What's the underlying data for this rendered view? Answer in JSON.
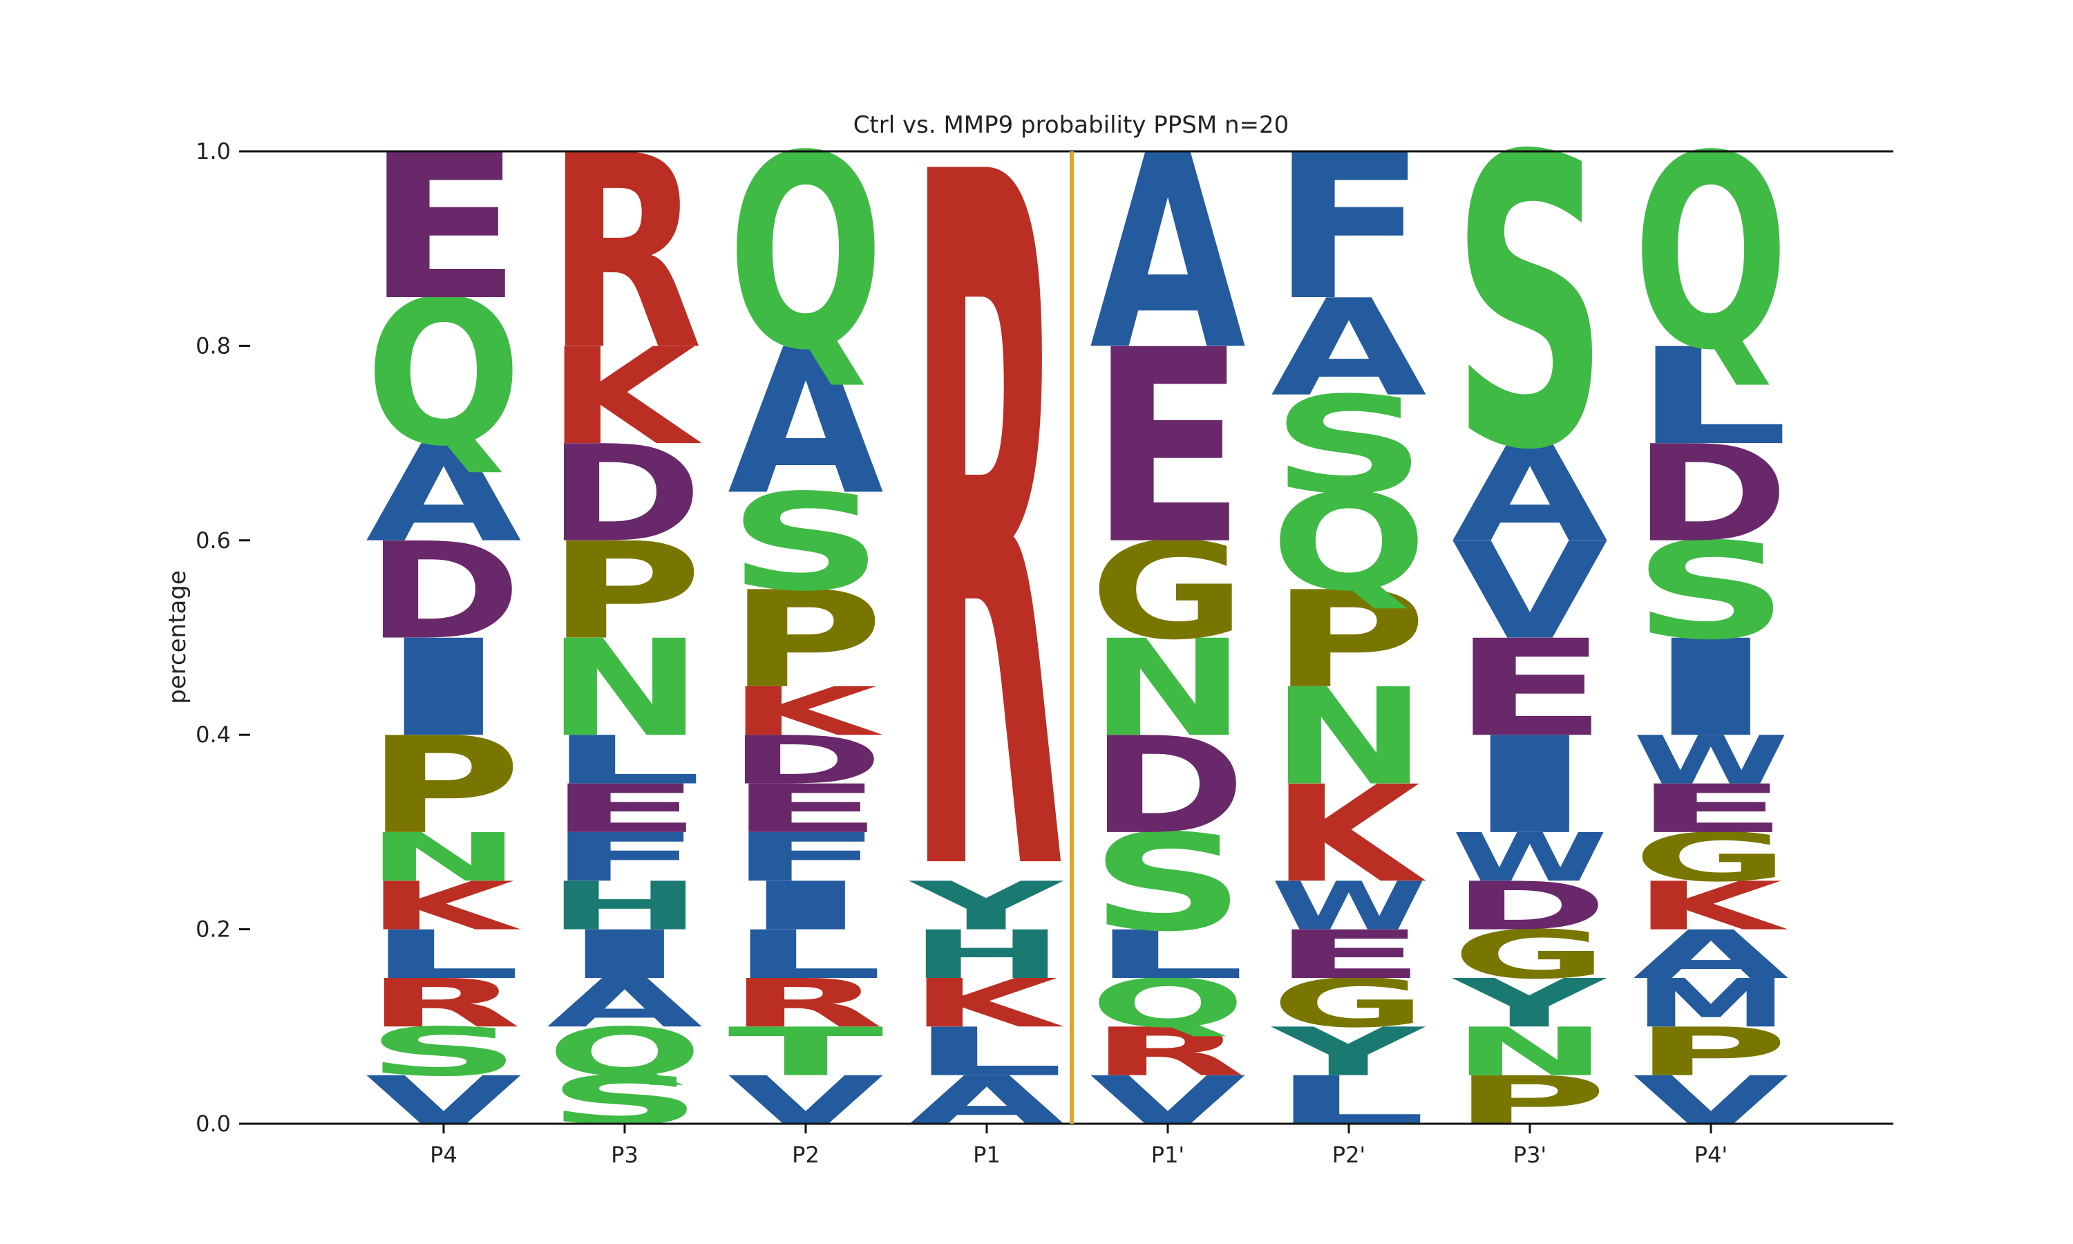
{
  "colors": {
    "purple": "#68286a",
    "green": "#3fba45",
    "blue": "#245b9e",
    "red": "#bb2e23",
    "olive": "#797600",
    "teal": "#1a7a72",
    "divider": "#dba42c",
    "axis": "#111111"
  },
  "chart_data": {
    "type": "sequence_logo",
    "title": "Ctrl vs. MMP9 probability PPSM n=20",
    "ylabel": "percentage",
    "xlabel": "",
    "ylim": [
      0,
      1.0
    ],
    "yticks": [
      "0.0",
      "0.2",
      "0.4",
      "0.6",
      "0.8",
      "1.0"
    ],
    "divider_after_position": "P1",
    "positions": [
      {
        "label": "P4",
        "letters": [
          {
            "aa": "V",
            "y0": 0.0,
            "y1": 0.05,
            "color": "blue"
          },
          {
            "aa": "S",
            "y0": 0.05,
            "y1": 0.1,
            "color": "green"
          },
          {
            "aa": "R",
            "y0": 0.1,
            "y1": 0.15,
            "color": "red"
          },
          {
            "aa": "L",
            "y0": 0.15,
            "y1": 0.2,
            "color": "blue"
          },
          {
            "aa": "K",
            "y0": 0.2,
            "y1": 0.25,
            "color": "red"
          },
          {
            "aa": "N",
            "y0": 0.25,
            "y1": 0.3,
            "color": "green"
          },
          {
            "aa": "P",
            "y0": 0.3,
            "y1": 0.4,
            "color": "olive"
          },
          {
            "aa": "I",
            "y0": 0.4,
            "y1": 0.5,
            "color": "blue"
          },
          {
            "aa": "D",
            "y0": 0.5,
            "y1": 0.6,
            "color": "purple"
          },
          {
            "aa": "A",
            "y0": 0.6,
            "y1": 0.7,
            "color": "blue"
          },
          {
            "aa": "Q",
            "y0": 0.7,
            "y1": 0.85,
            "color": "green"
          },
          {
            "aa": "E",
            "y0": 0.85,
            "y1": 1.0,
            "color": "purple"
          }
        ]
      },
      {
        "label": "P3",
        "letters": [
          {
            "aa": "S",
            "y0": 0.0,
            "y1": 0.05,
            "color": "green"
          },
          {
            "aa": "Q",
            "y0": 0.05,
            "y1": 0.1,
            "color": "green"
          },
          {
            "aa": "A",
            "y0": 0.1,
            "y1": 0.15,
            "color": "blue"
          },
          {
            "aa": "I",
            "y0": 0.15,
            "y1": 0.2,
            "color": "blue"
          },
          {
            "aa": "H",
            "y0": 0.2,
            "y1": 0.25,
            "color": "teal"
          },
          {
            "aa": "F",
            "y0": 0.25,
            "y1": 0.3,
            "color": "blue"
          },
          {
            "aa": "E",
            "y0": 0.3,
            "y1": 0.35,
            "color": "purple"
          },
          {
            "aa": "L",
            "y0": 0.35,
            "y1": 0.4,
            "color": "blue"
          },
          {
            "aa": "N",
            "y0": 0.4,
            "y1": 0.5,
            "color": "green"
          },
          {
            "aa": "P",
            "y0": 0.5,
            "y1": 0.6,
            "color": "olive"
          },
          {
            "aa": "D",
            "y0": 0.6,
            "y1": 0.7,
            "color": "purple"
          },
          {
            "aa": "K",
            "y0": 0.7,
            "y1": 0.8,
            "color": "red"
          },
          {
            "aa": "R",
            "y0": 0.8,
            "y1": 1.0,
            "color": "red"
          }
        ]
      },
      {
        "label": "P2",
        "letters": [
          {
            "aa": "V",
            "y0": 0.0,
            "y1": 0.05,
            "color": "blue"
          },
          {
            "aa": "T",
            "y0": 0.05,
            "y1": 0.1,
            "color": "green"
          },
          {
            "aa": "R",
            "y0": 0.1,
            "y1": 0.15,
            "color": "red"
          },
          {
            "aa": "L",
            "y0": 0.15,
            "y1": 0.2,
            "color": "blue"
          },
          {
            "aa": "I",
            "y0": 0.2,
            "y1": 0.25,
            "color": "blue"
          },
          {
            "aa": "F",
            "y0": 0.25,
            "y1": 0.3,
            "color": "blue"
          },
          {
            "aa": "E",
            "y0": 0.3,
            "y1": 0.35,
            "color": "purple"
          },
          {
            "aa": "D",
            "y0": 0.35,
            "y1": 0.4,
            "color": "purple"
          },
          {
            "aa": "K",
            "y0": 0.4,
            "y1": 0.45,
            "color": "red"
          },
          {
            "aa": "P",
            "y0": 0.45,
            "y1": 0.55,
            "color": "olive"
          },
          {
            "aa": "S",
            "y0": 0.55,
            "y1": 0.65,
            "color": "green"
          },
          {
            "aa": "A",
            "y0": 0.65,
            "y1": 0.8,
            "color": "blue"
          },
          {
            "aa": "Q",
            "y0": 0.8,
            "y1": 1.0,
            "color": "green"
          }
        ]
      },
      {
        "label": "P1",
        "letters": [
          {
            "aa": "A",
            "y0": 0.0,
            "y1": 0.05,
            "color": "blue"
          },
          {
            "aa": "L",
            "y0": 0.05,
            "y1": 0.1,
            "color": "blue"
          },
          {
            "aa": "K",
            "y0": 0.1,
            "y1": 0.15,
            "color": "red"
          },
          {
            "aa": "H",
            "y0": 0.15,
            "y1": 0.2,
            "color": "teal"
          },
          {
            "aa": "Y",
            "y0": 0.2,
            "y1": 0.25,
            "color": "teal"
          },
          {
            "aa": "R",
            "y0": 0.27,
            "y1": 0.985,
            "color": "red"
          }
        ]
      },
      {
        "label": "P1'",
        "letters": [
          {
            "aa": "V",
            "y0": 0.0,
            "y1": 0.05,
            "color": "blue"
          },
          {
            "aa": "R",
            "y0": 0.05,
            "y1": 0.1,
            "color": "red"
          },
          {
            "aa": "Q",
            "y0": 0.1,
            "y1": 0.15,
            "color": "green"
          },
          {
            "aa": "L",
            "y0": 0.15,
            "y1": 0.2,
            "color": "blue"
          },
          {
            "aa": "S",
            "y0": 0.2,
            "y1": 0.3,
            "color": "green"
          },
          {
            "aa": "D",
            "y0": 0.3,
            "y1": 0.4,
            "color": "purple"
          },
          {
            "aa": "N",
            "y0": 0.4,
            "y1": 0.5,
            "color": "green"
          },
          {
            "aa": "G",
            "y0": 0.5,
            "y1": 0.6,
            "color": "olive"
          },
          {
            "aa": "E",
            "y0": 0.6,
            "y1": 0.8,
            "color": "purple"
          },
          {
            "aa": "A",
            "y0": 0.8,
            "y1": 1.0,
            "color": "blue"
          }
        ]
      },
      {
        "label": "P2'",
        "letters": [
          {
            "aa": "L",
            "y0": 0.0,
            "y1": 0.05,
            "color": "blue"
          },
          {
            "aa": "Y",
            "y0": 0.05,
            "y1": 0.1,
            "color": "teal"
          },
          {
            "aa": "G",
            "y0": 0.1,
            "y1": 0.15,
            "color": "olive"
          },
          {
            "aa": "E",
            "y0": 0.15,
            "y1": 0.2,
            "color": "purple"
          },
          {
            "aa": "W",
            "y0": 0.2,
            "y1": 0.25,
            "color": "blue"
          },
          {
            "aa": "K",
            "y0": 0.25,
            "y1": 0.35,
            "color": "red"
          },
          {
            "aa": "N",
            "y0": 0.35,
            "y1": 0.45,
            "color": "green"
          },
          {
            "aa": "P",
            "y0": 0.45,
            "y1": 0.55,
            "color": "olive"
          },
          {
            "aa": "Q",
            "y0": 0.55,
            "y1": 0.65,
            "color": "green"
          },
          {
            "aa": "S",
            "y0": 0.65,
            "y1": 0.75,
            "color": "green"
          },
          {
            "aa": "A",
            "y0": 0.75,
            "y1": 0.85,
            "color": "blue"
          },
          {
            "aa": "F",
            "y0": 0.85,
            "y1": 1.0,
            "color": "blue"
          }
        ]
      },
      {
        "label": "P3'",
        "letters": [
          {
            "aa": "P",
            "y0": 0.0,
            "y1": 0.05,
            "color": "olive"
          },
          {
            "aa": "N",
            "y0": 0.05,
            "y1": 0.1,
            "color": "green"
          },
          {
            "aa": "Y",
            "y0": 0.1,
            "y1": 0.15,
            "color": "teal"
          },
          {
            "aa": "G",
            "y0": 0.15,
            "y1": 0.2,
            "color": "olive"
          },
          {
            "aa": "D",
            "y0": 0.2,
            "y1": 0.25,
            "color": "purple"
          },
          {
            "aa": "W",
            "y0": 0.25,
            "y1": 0.3,
            "color": "blue"
          },
          {
            "aa": "I",
            "y0": 0.3,
            "y1": 0.4,
            "color": "blue"
          },
          {
            "aa": "E",
            "y0": 0.4,
            "y1": 0.5,
            "color": "purple"
          },
          {
            "aa": "V",
            "y0": 0.5,
            "y1": 0.6,
            "color": "blue"
          },
          {
            "aa": "A",
            "y0": 0.6,
            "y1": 0.7,
            "color": "blue"
          },
          {
            "aa": "S",
            "y0": 0.7,
            "y1": 1.0,
            "color": "green"
          }
        ]
      },
      {
        "label": "P4'",
        "letters": [
          {
            "aa": "V",
            "y0": 0.0,
            "y1": 0.05,
            "color": "blue"
          },
          {
            "aa": "P",
            "y0": 0.05,
            "y1": 0.1,
            "color": "olive"
          },
          {
            "aa": "M",
            "y0": 0.1,
            "y1": 0.15,
            "color": "blue"
          },
          {
            "aa": "A",
            "y0": 0.15,
            "y1": 0.2,
            "color": "blue"
          },
          {
            "aa": "K",
            "y0": 0.2,
            "y1": 0.25,
            "color": "red"
          },
          {
            "aa": "G",
            "y0": 0.25,
            "y1": 0.3,
            "color": "olive"
          },
          {
            "aa": "E",
            "y0": 0.3,
            "y1": 0.35,
            "color": "purple"
          },
          {
            "aa": "W",
            "y0": 0.35,
            "y1": 0.4,
            "color": "blue"
          },
          {
            "aa": "I",
            "y0": 0.4,
            "y1": 0.5,
            "color": "blue"
          },
          {
            "aa": "S",
            "y0": 0.5,
            "y1": 0.6,
            "color": "green"
          },
          {
            "aa": "D",
            "y0": 0.6,
            "y1": 0.7,
            "color": "purple"
          },
          {
            "aa": "L",
            "y0": 0.7,
            "y1": 0.8,
            "color": "blue"
          },
          {
            "aa": "Q",
            "y0": 0.8,
            "y1": 1.0,
            "color": "green"
          }
        ]
      }
    ]
  }
}
